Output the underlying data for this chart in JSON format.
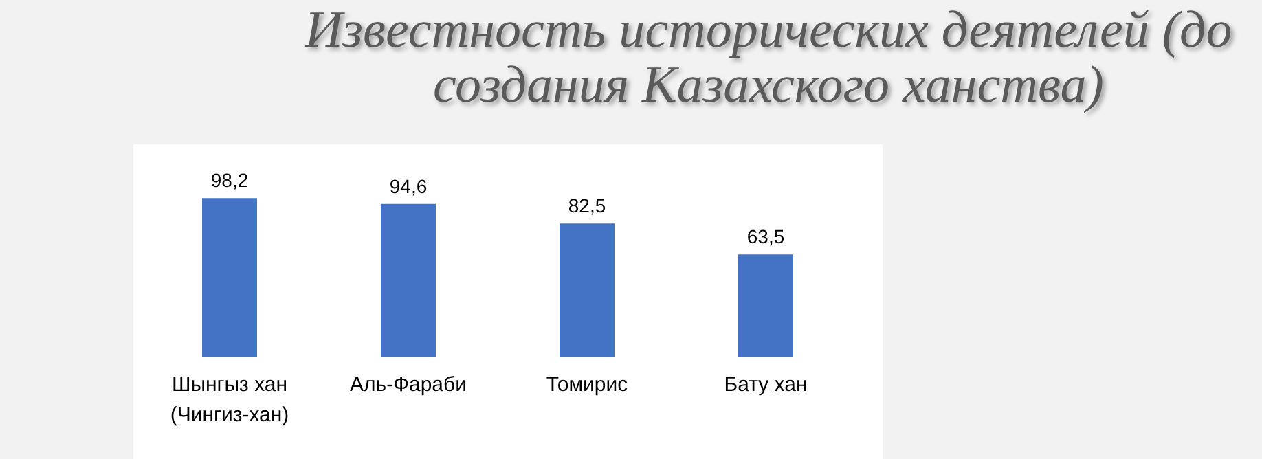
{
  "chart_data": {
    "type": "bar",
    "title": "Известность исторических деятелей (до создания Казахского ханства)",
    "categories": [
      "Шынгыз хан (Чингиз-хан)",
      "Аль-Фараби",
      "Томирис",
      "Бату хан"
    ],
    "values": [
      98.2,
      94.6,
      82.5,
      63.5
    ],
    "value_labels": [
      "98,2",
      "94,6",
      "82,5",
      "63,5"
    ],
    "color": "#4472c4"
  }
}
